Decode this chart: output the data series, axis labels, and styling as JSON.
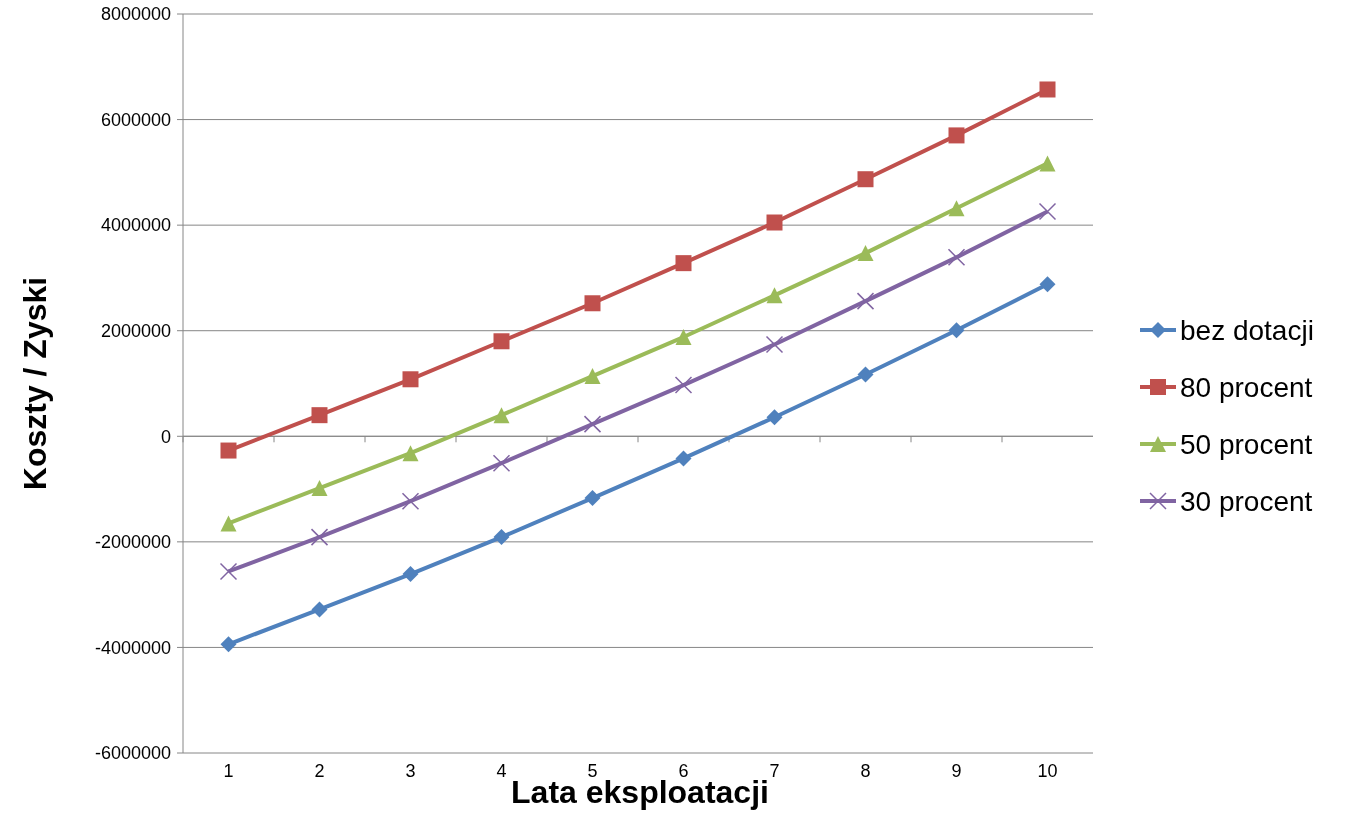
{
  "chart_data": {
    "type": "line",
    "xlabel": "Lata eksploatacji",
    "ylabel": "Koszty / Zyski",
    "categories": [
      "1",
      "2",
      "3",
      "4",
      "5",
      "6",
      "7",
      "8",
      "9",
      "10"
    ],
    "ylim": [
      -6000000,
      8000000
    ],
    "yticks": [
      -6000000,
      -4000000,
      -2000000,
      0,
      2000000,
      4000000,
      6000000,
      8000000
    ],
    "grid": "y",
    "legend": "right",
    "line_style": "solid",
    "series": [
      {
        "name": "bez dotacji",
        "color": "#4f81bd",
        "marker": "diamond",
        "values": [
          -3940000,
          -3280000,
          -2610000,
          -1910000,
          -1170000,
          -420000,
          360000,
          1170000,
          2010000,
          2880000
        ]
      },
      {
        "name": "80 procent",
        "color": "#c0504d",
        "marker": "square",
        "values": [
          -270000,
          400000,
          1080000,
          1800000,
          2520000,
          3280000,
          4050000,
          4870000,
          5700000,
          6570000
        ]
      },
      {
        "name": "50 procent",
        "color": "#9bbb59",
        "marker": "triangle",
        "values": [
          -1650000,
          -980000,
          -320000,
          400000,
          1140000,
          1880000,
          2670000,
          3470000,
          4320000,
          5170000
        ]
      },
      {
        "name": "30 procent",
        "color": "#8064a2",
        "marker": "cross",
        "values": [
          -2560000,
          -1910000,
          -1230000,
          -510000,
          230000,
          970000,
          1740000,
          2560000,
          3390000,
          4260000
        ]
      }
    ]
  }
}
